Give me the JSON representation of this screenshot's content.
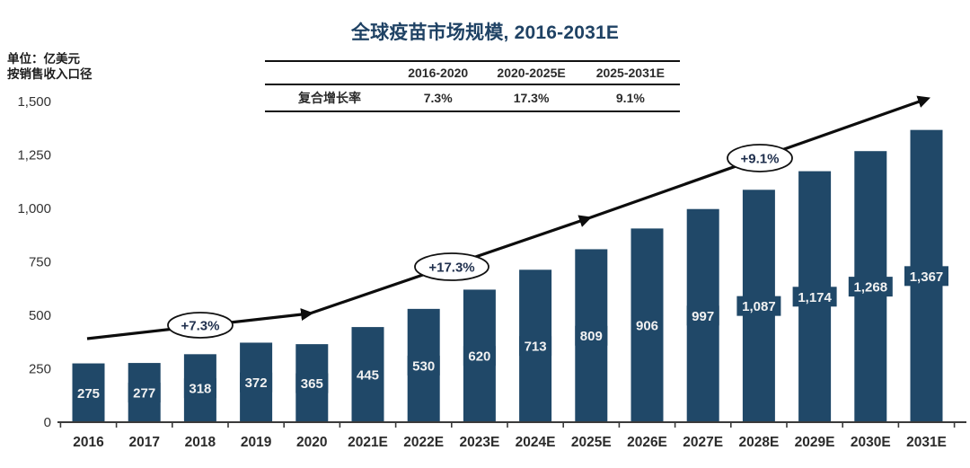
{
  "header": {
    "title": "全球疫苗市场规模, 2016-2031E",
    "unit_line1": "单位：亿美元",
    "unit_line2": "按销售收入口径"
  },
  "cagr_table": {
    "corner": "",
    "row_label": "复合增长率",
    "columns": [
      "2016-2020",
      "2020-2025E",
      "2025-2031E"
    ],
    "values": [
      "7.3%",
      "17.3%",
      "9.1%"
    ]
  },
  "chart_data": {
    "type": "bar",
    "title": "全球疫苗市场规模, 2016-2031E",
    "unit": "亿美元",
    "categories": [
      "2016",
      "2017",
      "2018",
      "2019",
      "2020",
      "2021E",
      "2022E",
      "2023E",
      "2024E",
      "2025E",
      "2026E",
      "2027E",
      "2028E",
      "2029E",
      "2030E",
      "2031E"
    ],
    "values": [
      275,
      277,
      318,
      372,
      365,
      445,
      530,
      620,
      713,
      809,
      906,
      997,
      1087,
      1174,
      1268,
      1367
    ],
    "value_labels": [
      "275",
      "277",
      "318",
      "372",
      "365",
      "445",
      "530",
      "620",
      "713",
      "809",
      "906",
      "997",
      "1,087",
      "1,174",
      "1,268",
      "1,367"
    ],
    "y_ticks": [
      "0",
      "250",
      "500",
      "750",
      "1,000",
      "1,250",
      "1,500"
    ],
    "y_tick_values": [
      0,
      250,
      500,
      750,
      1000,
      1250,
      1500
    ],
    "ylim": [
      0,
      1500
    ],
    "xlabel": "",
    "ylabel": "亿美元",
    "grid": false,
    "legend": "none",
    "annotations": [
      {
        "label": "+7.3%"
      },
      {
        "label": "+17.3%"
      },
      {
        "label": "+9.1%"
      }
    ],
    "bar_color": "#204868"
  },
  "colors": {
    "bar": "#204868",
    "title": "#1f4264",
    "bar_label_text": "#f2f2f2",
    "axis": "#3a3a3a",
    "arrow": "#0d0d0d",
    "annotation_text": "#1f2f4d"
  }
}
